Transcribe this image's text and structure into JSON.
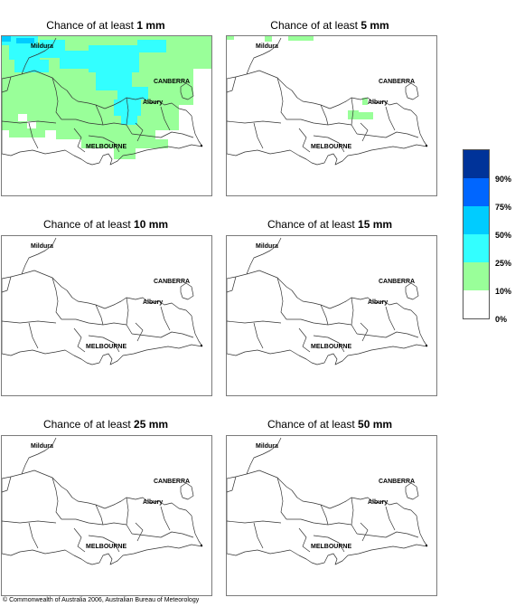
{
  "panels": [
    {
      "title_prefix": "Chance of at least ",
      "amount": "1 mm"
    },
    {
      "title_prefix": "Chance of at least ",
      "amount": "5 mm"
    },
    {
      "title_prefix": "Chance of at least ",
      "amount": "10 mm"
    },
    {
      "title_prefix": "Chance of at least ",
      "amount": "15 mm"
    },
    {
      "title_prefix": "Chance of at least ",
      "amount": "25 mm"
    },
    {
      "title_prefix": "Chance of at least ",
      "amount": "50 mm"
    }
  ],
  "places": {
    "mildura": "Mildura",
    "canberra": "CANBERRA",
    "albury": "Albury",
    "melbourne": "MELBOURNE"
  },
  "legend": {
    "ticks": [
      "90%",
      "75%",
      "50%",
      "25%",
      "10%",
      "0%"
    ],
    "colors": [
      "#003399",
      "#0066ff",
      "#00ccff",
      "#33ffff",
      "#99ff99",
      "#ffffff"
    ]
  },
  "map_colors": {
    "low": "#99ff99",
    "mid": "#33ffff",
    "high": "#00ccff"
  },
  "copyright": "© Commonwealth of Australia 2006, Australian Bureau of Meteorology"
}
